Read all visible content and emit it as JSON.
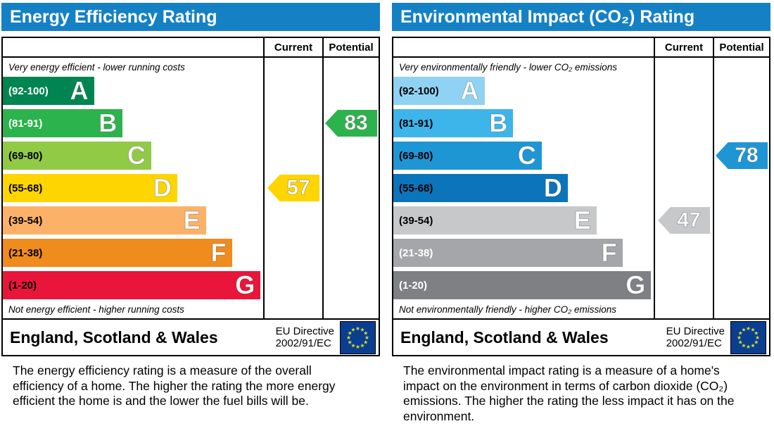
{
  "colors": {
    "header_bg": "#1581c5",
    "flag_bg": "#0b3d91",
    "flag_stars": "#d3dd2c"
  },
  "footer": {
    "region": "England, Scotland & Wales",
    "directive_line1": "EU Directive",
    "directive_line2": "2002/91/EC",
    "flag_icon": "eu-flag"
  },
  "descriptions": [
    "The energy efficiency rating is a measure of the overall efficiency of a home. The higher the rating the more energy efficient the home is and the lower the fuel bills will be.",
    "The environmental impact rating is a measure of a home's impact on the environment in terms of carbon dioxide (CO₂) emissions. The higher the rating the less impact it has on the environment."
  ],
  "chart_data": [
    {
      "type": "bar",
      "subtype": "epc-rating-bands",
      "title": "Energy Efficiency Rating",
      "columns": [
        "Current",
        "Potential"
      ],
      "top_label": "Very energy efficient - lower running costs",
      "bottom_label": "Not energy efficient - higher running costs",
      "bands": [
        {
          "letter": "A",
          "range": "(92-100)",
          "min": 92,
          "max": 100,
          "color": "#008552",
          "label_color": "#ffffff",
          "width_pct": 35
        },
        {
          "letter": "B",
          "range": "(81-91)",
          "min": 81,
          "max": 91,
          "color": "#2db34d",
          "label_color": "#ffffff",
          "width_pct": 46
        },
        {
          "letter": "C",
          "range": "(69-80)",
          "min": 69,
          "max": 80,
          "color": "#91ca45",
          "label_color": "#000000",
          "width_pct": 57
        },
        {
          "letter": "D",
          "range": "(55-68)",
          "min": 55,
          "max": 68,
          "color": "#ffd500",
          "label_color": "#000000",
          "width_pct": 67
        },
        {
          "letter": "E",
          "range": "(39-54)",
          "min": 39,
          "max": 54,
          "color": "#fbb268",
          "label_color": "#000000",
          "width_pct": 78
        },
        {
          "letter": "F",
          "range": "(21-38)",
          "min": 21,
          "max": 38,
          "color": "#f08b1e",
          "label_color": "#000000",
          "width_pct": 88
        },
        {
          "letter": "G",
          "range": "(1-20)",
          "min": 1,
          "max": 20,
          "color": "#e9153b",
          "label_color": "#000000",
          "width_pct": 99
        }
      ],
      "current": {
        "value": 57,
        "band": "D",
        "band_index": 3,
        "arrow_color": "#ffd500"
      },
      "potential": {
        "value": 83,
        "band": "B",
        "band_index": 1,
        "arrow_color": "#2db34d"
      }
    },
    {
      "type": "bar",
      "subtype": "epc-rating-bands",
      "title": "Environmental Impact (CO₂) Rating",
      "columns": [
        "Current",
        "Potential"
      ],
      "top_label": "Very environmentally friendly - lower CO₂ emissions",
      "bottom_label": "Not environmentally friendly - higher CO₂ emissions",
      "bands": [
        {
          "letter": "A",
          "range": "(92-100)",
          "min": 92,
          "max": 100,
          "color": "#8fd2f3",
          "label_color": "#000000",
          "width_pct": 35
        },
        {
          "letter": "B",
          "range": "(81-91)",
          "min": 81,
          "max": 91,
          "color": "#3db5ea",
          "label_color": "#000000",
          "width_pct": 46
        },
        {
          "letter": "C",
          "range": "(69-80)",
          "min": 69,
          "max": 80,
          "color": "#1f96d4",
          "label_color": "#000000",
          "width_pct": 57
        },
        {
          "letter": "D",
          "range": "(55-68)",
          "min": 55,
          "max": 68,
          "color": "#0b74ba",
          "label_color": "#000000",
          "width_pct": 67
        },
        {
          "letter": "E",
          "range": "(39-54)",
          "min": 39,
          "max": 54,
          "color": "#c7c8ca",
          "label_color": "#000000",
          "width_pct": 78
        },
        {
          "letter": "F",
          "range": "(21-38)",
          "min": 21,
          "max": 38,
          "color": "#a5a6a9",
          "label_color": "#ffffff",
          "width_pct": 88
        },
        {
          "letter": "G",
          "range": "(1-20)",
          "min": 1,
          "max": 20,
          "color": "#7f8083",
          "label_color": "#ffffff",
          "width_pct": 99
        }
      ],
      "current": {
        "value": 47,
        "band": "E",
        "band_index": 4,
        "arrow_color": "#c7c8ca"
      },
      "potential": {
        "value": 78,
        "band": "C",
        "band_index": 2,
        "arrow_color": "#1f96d4"
      }
    }
  ]
}
